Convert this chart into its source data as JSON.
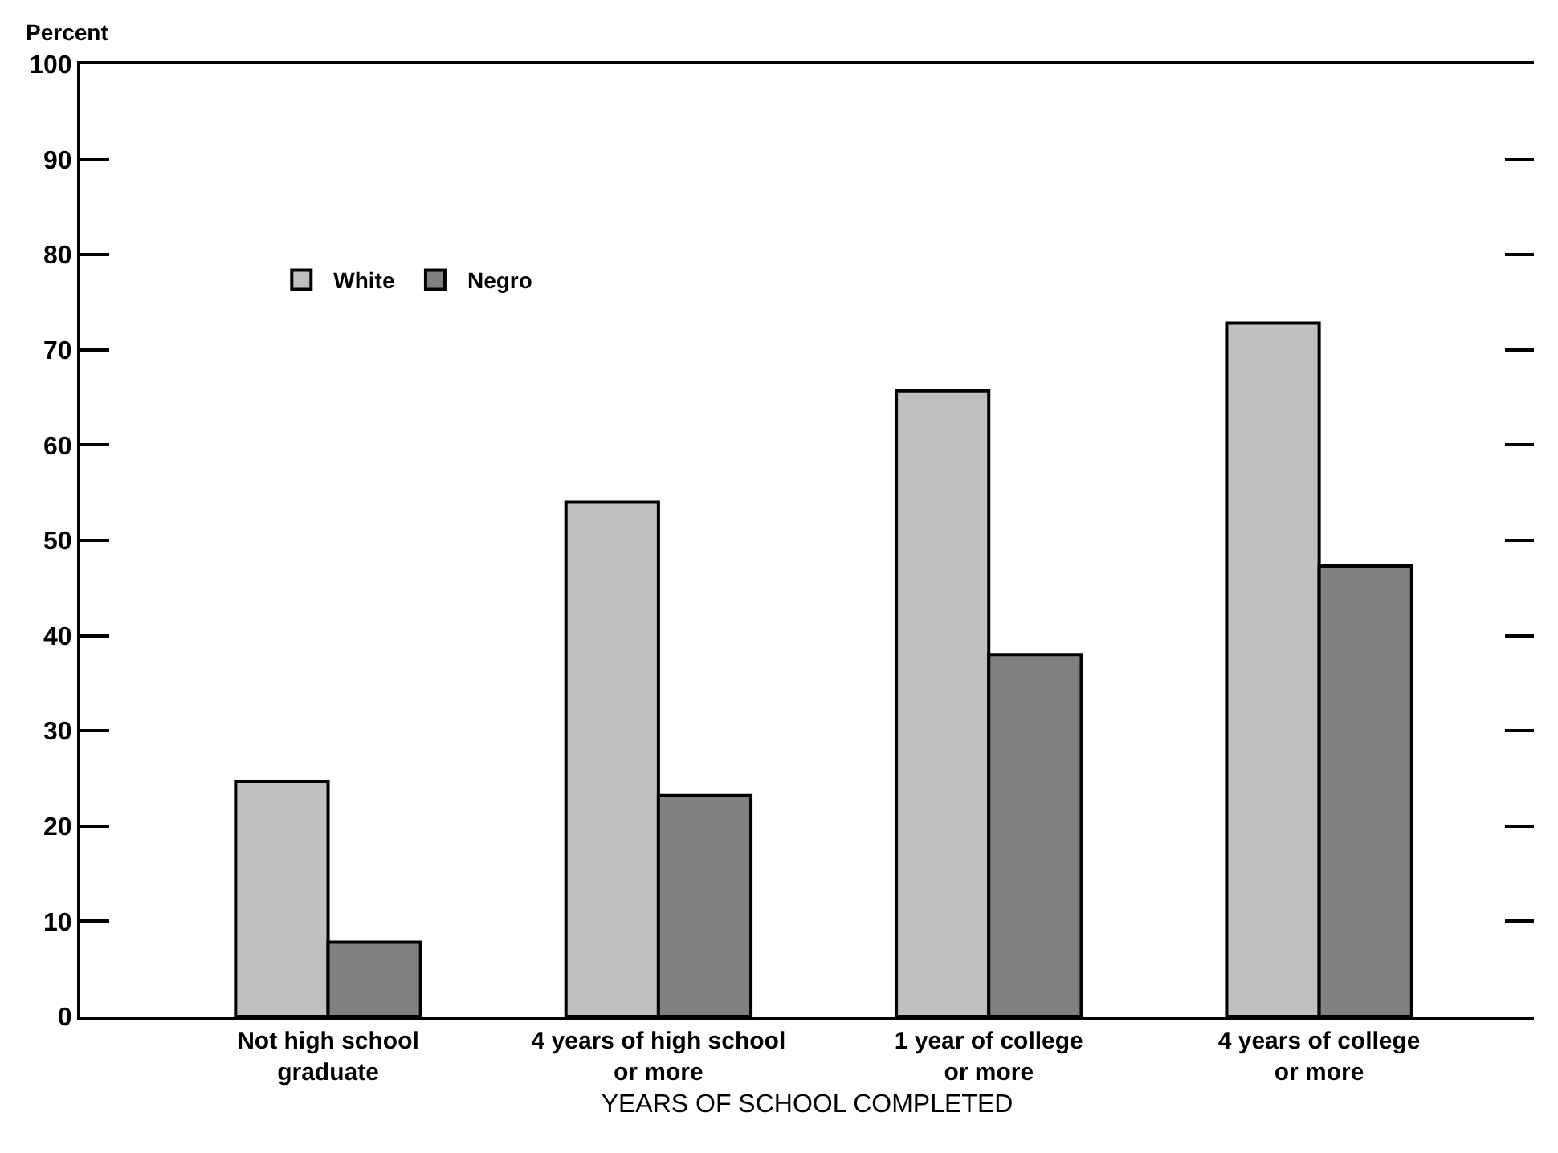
{
  "chart_data": {
    "type": "bar",
    "ylabel": "Percent",
    "xlabel": "YEARS OF SCHOOL COMPLETED",
    "categories": [
      "Not high school\ngraduate",
      "4 years of high school\nor more",
      "1 year of college\nor more",
      "4 years of college\nor more"
    ],
    "series": [
      {
        "name": "White",
        "color": "#c0c0c0",
        "values": [
          24.7,
          54.0,
          65.7,
          72.8
        ]
      },
      {
        "name": "Negro",
        "color": "#808080",
        "values": [
          7.8,
          23.2,
          38.0,
          47.3
        ]
      }
    ],
    "ylim": [
      0,
      100
    ],
    "yticks": [
      0,
      10,
      20,
      30,
      40,
      50,
      60,
      70,
      80,
      90,
      100
    ],
    "grid": false,
    "legend": "top left"
  }
}
